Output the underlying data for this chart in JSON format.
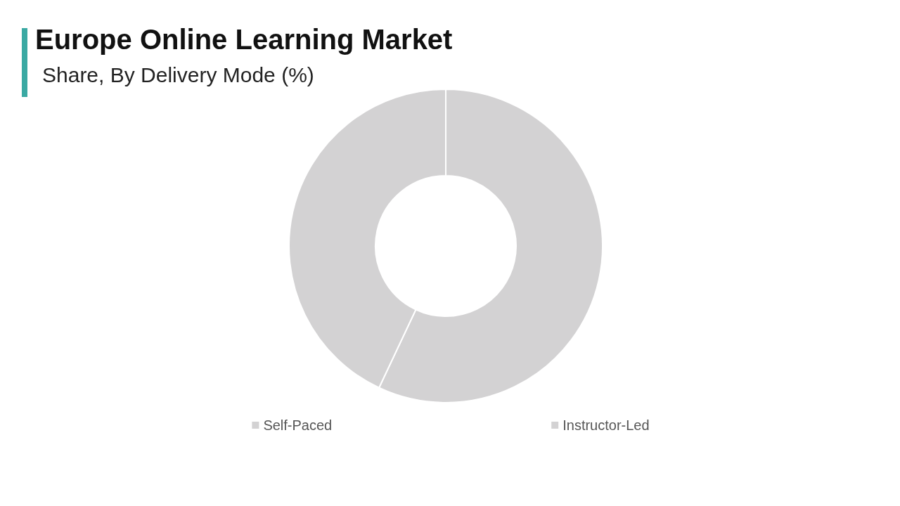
{
  "chart_data": {
    "type": "donut",
    "title": "Europe Online Learning Market",
    "subtitle": "Share, By Delivery Mode (%)",
    "categories": [
      "Self-Paced",
      "Instructor-Led"
    ],
    "values": [
      57,
      43
    ],
    "colors": [
      "#d3d2d3",
      "#d3d2d3"
    ],
    "legend": "bottom"
  }
}
